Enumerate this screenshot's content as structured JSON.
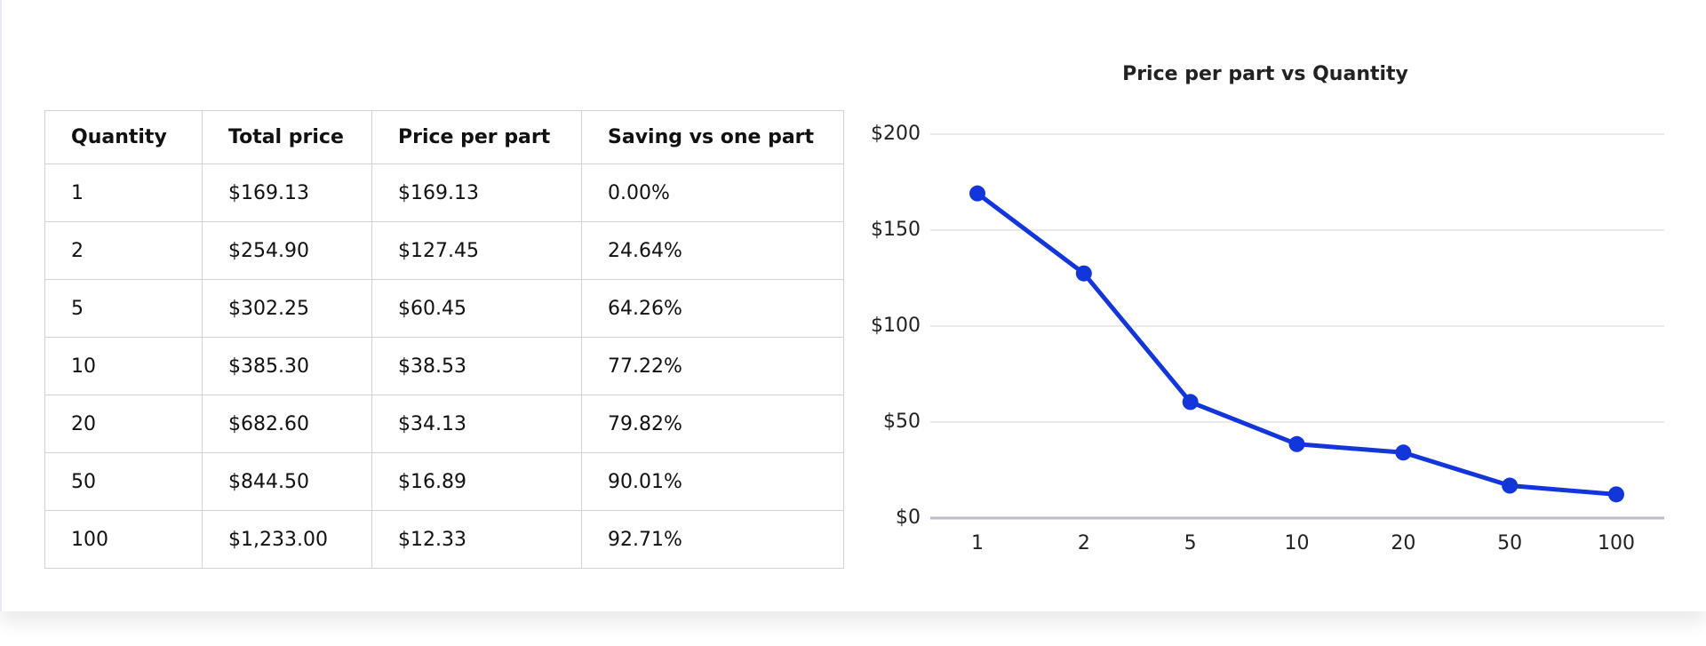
{
  "table": {
    "header": [
      "Quantity",
      "Total price",
      "Price per part",
      "Saving vs one part"
    ],
    "rows": [
      [
        "1",
        "$169.13",
        "$169.13",
        "0.00%"
      ],
      [
        "2",
        "$254.90",
        "$127.45",
        "24.64%"
      ],
      [
        "5",
        "$302.25",
        "$60.45",
        "64.26%"
      ],
      [
        "10",
        "$385.30",
        "$38.53",
        "77.22%"
      ],
      [
        "20",
        "$682.60",
        "$34.13",
        "79.82%"
      ],
      [
        "50",
        "$844.50",
        "$16.89",
        "90.01%"
      ],
      [
        "100",
        "$1,233.00",
        "$12.33",
        "92.71%"
      ]
    ]
  },
  "chart_data": {
    "type": "line",
    "title": "Price per part vs Quantity",
    "categories": [
      "1",
      "2",
      "5",
      "10",
      "20",
      "50",
      "100"
    ],
    "series": [
      {
        "name": "Price per part",
        "color": "#1236d9",
        "values": [
          169.13,
          127.45,
          60.45,
          38.53,
          34.13,
          16.89,
          12.33
        ]
      }
    ],
    "ylim": [
      0,
      200
    ],
    "yticks": [
      {
        "value": 0,
        "label": "$0"
      },
      {
        "value": 50,
        "label": "$50"
      },
      {
        "value": 100,
        "label": "$100"
      },
      {
        "value": 150,
        "label": "$150"
      },
      {
        "value": 200,
        "label": "$200"
      }
    ],
    "grid": true,
    "legend": false
  }
}
